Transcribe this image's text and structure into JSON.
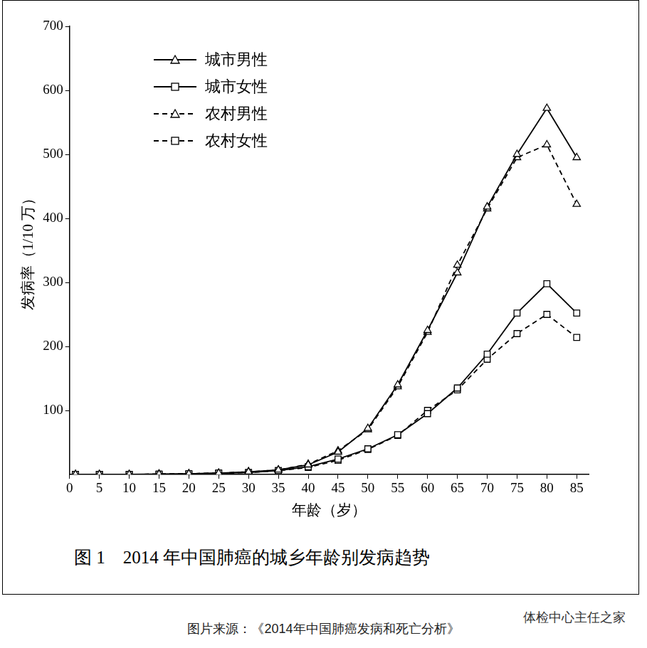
{
  "chart_data": {
    "type": "line",
    "title": "图 1　2014 年中国肺癌的城乡年龄别发病趋势",
    "x_label": "年龄（岁）",
    "y_label": "发病率（1/10 万）",
    "annotations": [
      "图片来源：《2014年中国肺癌发病和死亡分析》",
      "体检中心主任之家"
    ],
    "x": [
      1,
      5,
      10,
      15,
      20,
      25,
      30,
      35,
      40,
      45,
      50,
      55,
      60,
      65,
      70,
      75,
      80,
      85
    ],
    "series": [
      {
        "name": "城市男性",
        "color": "#000000",
        "marker": "triangle",
        "line_style": "solid",
        "values": [
          0,
          0,
          0,
          0.5,
          1,
          2,
          4,
          7,
          15,
          35,
          72,
          140,
          225,
          315,
          418,
          500,
          572,
          495
        ]
      },
      {
        "name": "城市女性",
        "color": "#000000",
        "marker": "square",
        "line_style": "solid",
        "values": [
          0,
          0,
          0,
          0.5,
          1,
          2,
          3,
          6,
          12,
          24,
          40,
          62,
          95,
          135,
          188,
          252,
          298,
          252
        ]
      },
      {
        "name": "农村男性",
        "color": "#000000",
        "marker": "triangle",
        "line_style": "dashed",
        "values": [
          0,
          0,
          0,
          0.5,
          1,
          2,
          4,
          7,
          16,
          37,
          70,
          137,
          222,
          327,
          415,
          495,
          515,
          422
        ]
      },
      {
        "name": "农村女性",
        "color": "#000000",
        "marker": "square",
        "line_style": "dashed",
        "values": [
          0,
          0,
          0,
          0.5,
          1,
          2,
          3,
          6,
          11,
          22,
          39,
          61,
          100,
          132,
          180,
          220,
          250,
          214
        ]
      }
    ],
    "xlim": [
      0,
      87
    ],
    "xticks": [
      0,
      5,
      10,
      15,
      20,
      25,
      30,
      35,
      40,
      45,
      50,
      55,
      60,
      65,
      70,
      75,
      80,
      85
    ],
    "ylim": [
      0,
      700
    ],
    "yticks": [
      100,
      200,
      300,
      400,
      500,
      600,
      700
    ],
    "grid": false,
    "legend": "upper left"
  }
}
